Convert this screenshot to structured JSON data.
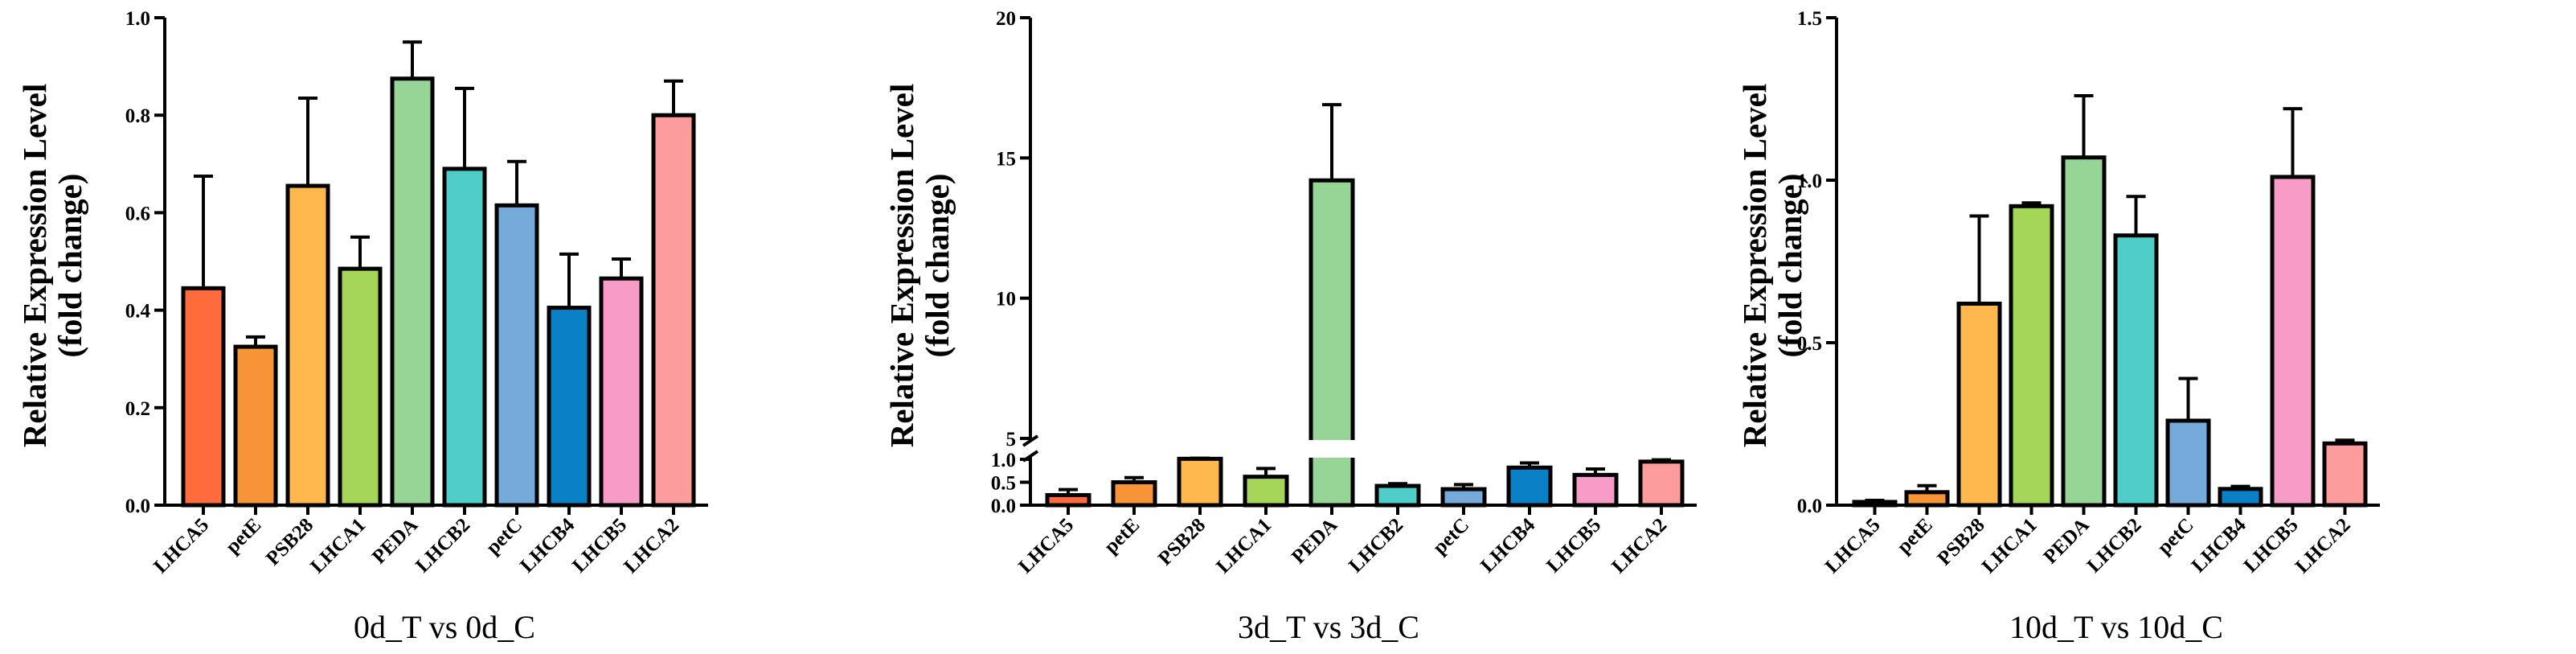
{
  "chart_data": [
    {
      "type": "bar",
      "title": "0d_T vs 0d_C",
      "ylabel": [
        "Relative Expression Level",
        "(fold change)"
      ],
      "ylim": [
        0,
        1.0
      ],
      "yticks": [
        "0.0",
        "0.2",
        "0.4",
        "0.6",
        "0.8",
        "1.0"
      ],
      "axis_break": null,
      "categories": [
        "LHCA5",
        "petE",
        "PSB28",
        "LHCA1",
        "PEDA",
        "LHCB2",
        "petC",
        "LHCB4",
        "LHCB5",
        "LHCA2"
      ],
      "values": [
        0.445,
        0.325,
        0.655,
        0.485,
        0.875,
        0.69,
        0.615,
        0.405,
        0.465,
        0.8
      ],
      "errors": [
        0.23,
        0.02,
        0.18,
        0.065,
        0.075,
        0.165,
        0.09,
        0.11,
        0.04,
        0.07
      ],
      "colors": [
        "#FF6B3D",
        "#F89438",
        "#FFB84D",
        "#A5D65A",
        "#96D596",
        "#4ECDC9",
        "#74A9DA",
        "#0A80C6",
        "#F69CC7",
        "#FD9C9C"
      ]
    },
    {
      "type": "bar",
      "title": "3d_T vs 3d_C",
      "ylabel": [
        "Relative Expression Level",
        "(fold change)"
      ],
      "ylim": [
        0,
        20
      ],
      "yticks": [
        "0.0",
        "0.5",
        "1.0",
        "5",
        "10",
        "15",
        "20"
      ],
      "axis_break": [
        1.0,
        5.0
      ],
      "categories": [
        "LHCA5",
        "petE",
        "PSB28",
        "LHCA1",
        "PEDA",
        "LHCB2",
        "petC",
        "LHCB4",
        "LHCB5",
        "LHCA2"
      ],
      "values": [
        0.22,
        0.5,
        1.1,
        0.62,
        14.2,
        0.42,
        0.35,
        0.82,
        0.66,
        0.95
      ],
      "errors": [
        0.12,
        0.1,
        0.12,
        0.18,
        2.7,
        0.05,
        0.1,
        0.1,
        0.13,
        0.04
      ],
      "colors": [
        "#FF6B3D",
        "#F89438",
        "#FFB84D",
        "#A5D65A",
        "#96D596",
        "#4ECDC9",
        "#74A9DA",
        "#0A80C6",
        "#F69CC7",
        "#FD9C9C"
      ]
    },
    {
      "type": "bar",
      "title": "10d_T vs 10d_C",
      "ylabel": [
        "Relative Expression Level",
        "(fold change)"
      ],
      "ylim": [
        0,
        1.5
      ],
      "yticks": [
        "0.0",
        "0.5",
        "1.0",
        "1.5"
      ],
      "axis_break": null,
      "categories": [
        "LHCA5",
        "petE",
        "PSB28",
        "LHCA1",
        "PEDA",
        "LHCB2",
        "petC",
        "LHCB4",
        "LHCB5",
        "LHCA2"
      ],
      "values": [
        0.01,
        0.04,
        0.62,
        0.92,
        1.07,
        0.83,
        0.26,
        0.05,
        1.01,
        0.19
      ],
      "errors": [
        0.005,
        0.02,
        0.27,
        0.01,
        0.19,
        0.12,
        0.13,
        0.008,
        0.21,
        0.01
      ],
      "colors": [
        "#FF6B3D",
        "#F89438",
        "#FFB84D",
        "#A5D65A",
        "#96D596",
        "#4ECDC9",
        "#74A9DA",
        "#0A80C6",
        "#F69CC7",
        "#FD9C9C"
      ]
    }
  ]
}
